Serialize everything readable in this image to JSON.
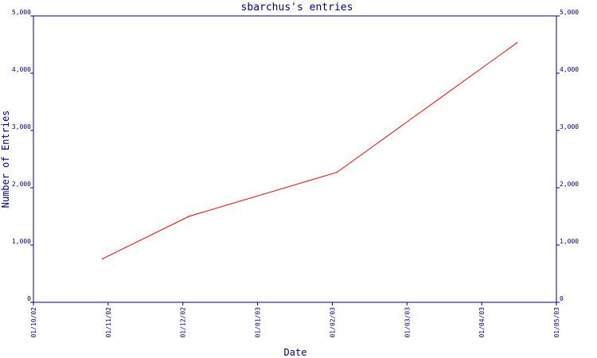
{
  "chart_data": {
    "type": "line",
    "title": "sbarchus's entries",
    "xlabel": "Date",
    "ylabel": "Number of Entries",
    "x_ticks": [
      "01/10/02",
      "01/11/02",
      "01/12/02",
      "01/01/03",
      "01/02/03",
      "01/03/03",
      "01/04/03",
      "01/05/03"
    ],
    "y_ticks": [
      "0",
      "1,000",
      "2,000",
      "3,000",
      "4,000",
      "5,000"
    ],
    "ylim": [
      0,
      5000
    ],
    "xlim": [
      "2002-10-01",
      "2003-05-01"
    ],
    "series": [
      {
        "color": "#ff0000",
        "points": [
          {
            "x": "2002-10-29",
            "y": 760
          },
          {
            "x": "2002-12-03",
            "y": 1500
          },
          {
            "x": "2003-02-01",
            "y": 2270
          },
          {
            "x": "2003-04-15",
            "y": 4530
          }
        ]
      }
    ],
    "grid": false,
    "axis_color": "#000080",
    "right_axis_mirrored": true
  }
}
